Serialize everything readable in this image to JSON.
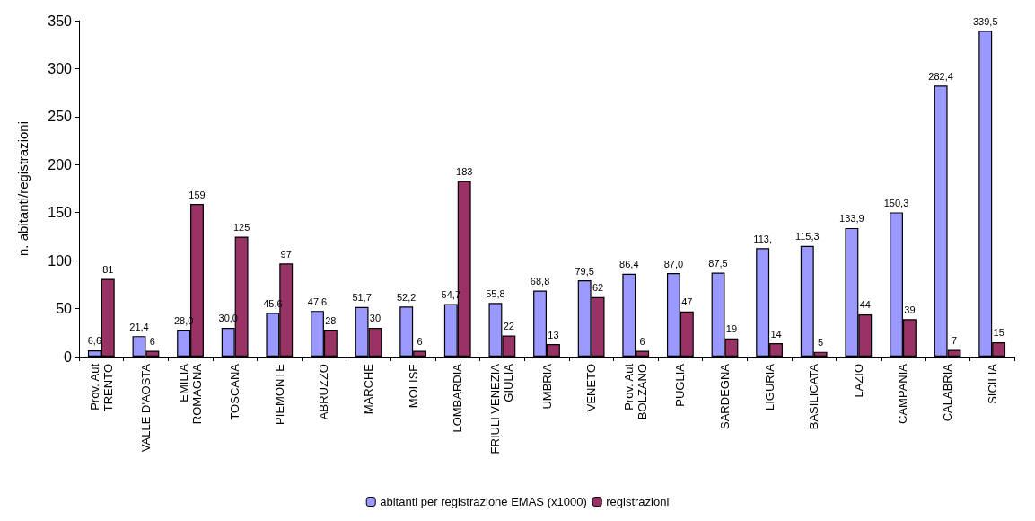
{
  "chart_data": {
    "type": "bar",
    "ylabel": "n. abitanti/registrazioni",
    "categories": [
      "Prov. Aut\nTRENTO",
      "VALLE D'AOSTA",
      "EMILIA\nROMAGNA",
      "TOSCANA",
      "PIEMONTE",
      "ABRUZZO",
      "MARCHE",
      "MOLISE",
      "LOMBARDIA",
      "FRIULI VENEZIA\nGIULIA",
      "UMBRIA",
      "VENETO",
      "Prov. Aut\nBOLZANO",
      "PUGLIA",
      "SARDEGNA",
      "LIGURIA",
      "BASILICATA",
      "LAZIO",
      "CAMPANIA",
      "CALABRIA",
      "SICILIA"
    ],
    "series": [
      {
        "name": "abitanti per registrazione EMAS (x1000)",
        "color": "#9999ff",
        "values": [
          6.6,
          21.4,
          28.0,
          30.0,
          45.6,
          47.6,
          51.7,
          52.2,
          54.7,
          55.8,
          68.8,
          79.5,
          86.4,
          87.0,
          87.5,
          113,
          115.3,
          133.9,
          150.3,
          282.4,
          339.5
        ],
        "value_labels": [
          "6,6",
          "21,4",
          "28,0",
          "30,0",
          "45,6",
          "47,6",
          "51,7",
          "52,2",
          "54,7",
          "55,8",
          "68,8",
          "79,5",
          "86,4",
          "87,0",
          "87,5",
          "113,",
          "115,3",
          "133,9",
          "150,3",
          "282,4",
          "339,5"
        ]
      },
      {
        "name": "registrazioni",
        "color": "#993366",
        "values": [
          81,
          6,
          159,
          125,
          97,
          28,
          30,
          6,
          183,
          22,
          13,
          62,
          6,
          47,
          19,
          14,
          5,
          44,
          39,
          7,
          15
        ],
        "value_labels": [
          "81",
          "6",
          "159",
          "125",
          "97",
          "28",
          "30",
          "6",
          "183",
          "22",
          "13",
          "62",
          "6",
          "47",
          "19",
          "14",
          "5",
          "44",
          "39",
          "7",
          "15"
        ]
      }
    ],
    "ylim": [
      0,
      350
    ],
    "yticks": [
      0,
      50,
      100,
      150,
      200,
      250,
      300,
      350
    ],
    "grid": false,
    "legend": "bottom"
  }
}
